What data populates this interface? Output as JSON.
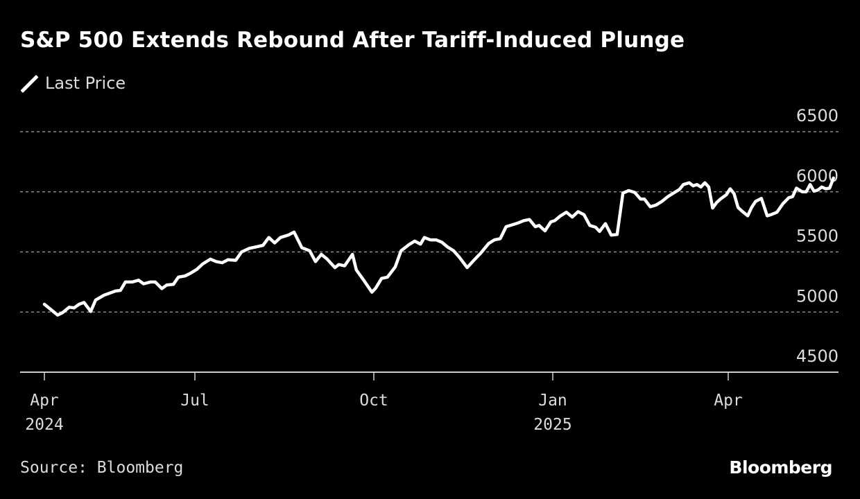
{
  "chart_data": {
    "type": "line",
    "title": "S&P 500 Extends Rebound After Tariff-Induced Plunge",
    "xlabel": "",
    "ylabel": "",
    "ylim": [
      4500,
      6500
    ],
    "y_ticks": [
      "6500",
      "6000",
      "5500",
      "5000",
      "4500"
    ],
    "y_tick_values": [
      6500,
      6000,
      5500,
      5000,
      4500
    ],
    "grid": true,
    "legend": {
      "placement": "top-left",
      "entries": [
        "Last Price"
      ]
    },
    "x_ticks": [
      {
        "date": "2024-04-01",
        "label": "Apr",
        "sublabel": "2024"
      },
      {
        "date": "2024-07-01",
        "label": "Jul",
        "sublabel": ""
      },
      {
        "date": "2024-10-01",
        "label": "Oct",
        "sublabel": ""
      },
      {
        "date": "2025-01-01",
        "label": "Jan",
        "sublabel": "2025"
      },
      {
        "date": "2025-04-01",
        "label": "Apr",
        "sublabel": ""
      }
    ],
    "xlim": [
      "2024-03-19",
      "2025-05-28"
    ],
    "series": [
      {
        "name": "Last Price",
        "color": "#ffffff",
        "points": [
          [
            "2024-04-01",
            5065
          ],
          [
            "2024-04-05",
            5020
          ],
          [
            "2024-04-09",
            4975
          ],
          [
            "2024-04-12",
            4995
          ],
          [
            "2024-04-16",
            5040
          ],
          [
            "2024-04-19",
            5035
          ],
          [
            "2024-04-22",
            5065
          ],
          [
            "2024-04-25",
            5080
          ],
          [
            "2024-04-29",
            5005
          ],
          [
            "2024-05-02",
            5100
          ],
          [
            "2024-05-07",
            5140
          ],
          [
            "2024-05-10",
            5155
          ],
          [
            "2024-05-14",
            5175
          ],
          [
            "2024-05-17",
            5180
          ],
          [
            "2024-05-20",
            5250
          ],
          [
            "2024-05-24",
            5250
          ],
          [
            "2024-05-28",
            5265
          ],
          [
            "2024-05-31",
            5235
          ],
          [
            "2024-06-04",
            5250
          ],
          [
            "2024-06-07",
            5250
          ],
          [
            "2024-06-11",
            5195
          ],
          [
            "2024-06-14",
            5225
          ],
          [
            "2024-06-18",
            5230
          ],
          [
            "2024-06-21",
            5290
          ],
          [
            "2024-06-25",
            5300
          ],
          [
            "2024-06-28",
            5320
          ],
          [
            "2024-07-02",
            5355
          ],
          [
            "2024-07-05",
            5400
          ],
          [
            "2024-07-09",
            5440
          ],
          [
            "2024-07-12",
            5420
          ],
          [
            "2024-07-15",
            5410
          ],
          [
            "2024-07-18",
            5435
          ],
          [
            "2024-07-22",
            5430
          ],
          [
            "2024-07-25",
            5500
          ],
          [
            "2024-07-29",
            5530
          ],
          [
            "2024-08-01",
            5540
          ],
          [
            "2024-08-05",
            5555
          ],
          [
            "2024-08-08",
            5620
          ],
          [
            "2024-08-11",
            5575
          ],
          [
            "2024-08-14",
            5620
          ],
          [
            "2024-08-18",
            5640
          ],
          [
            "2024-08-21",
            5665
          ],
          [
            "2024-08-25",
            5535
          ],
          [
            "2024-08-29",
            5510
          ],
          [
            "2024-09-01",
            5420
          ],
          [
            "2024-09-04",
            5480
          ],
          [
            "2024-09-07",
            5440
          ],
          [
            "2024-09-11",
            5370
          ],
          [
            "2024-09-13",
            5395
          ],
          [
            "2024-09-16",
            5385
          ],
          [
            "2024-09-20",
            5480
          ],
          [
            "2024-09-22",
            5350
          ],
          [
            "2024-09-26",
            5260
          ],
          [
            "2024-09-30",
            5165
          ],
          [
            "2024-10-02",
            5200
          ],
          [
            "2024-10-05",
            5280
          ],
          [
            "2024-10-08",
            5290
          ],
          [
            "2024-10-12",
            5375
          ],
          [
            "2024-10-15",
            5510
          ],
          [
            "2024-10-19",
            5560
          ],
          [
            "2024-10-22",
            5590
          ],
          [
            "2024-10-25",
            5565
          ],
          [
            "2024-10-27",
            5620
          ],
          [
            "2024-10-30",
            5600
          ],
          [
            "2024-11-02",
            5600
          ],
          [
            "2024-11-05",
            5580
          ],
          [
            "2024-11-08",
            5540
          ],
          [
            "2024-11-11",
            5510
          ],
          [
            "2024-11-14",
            5455
          ],
          [
            "2024-11-18",
            5370
          ],
          [
            "2024-11-22",
            5440
          ],
          [
            "2024-11-25",
            5490
          ],
          [
            "2024-11-29",
            5570
          ],
          [
            "2024-12-02",
            5600
          ],
          [
            "2024-12-05",
            5610
          ],
          [
            "2024-12-08",
            5710
          ],
          [
            "2024-12-11",
            5725
          ],
          [
            "2024-12-14",
            5740
          ],
          [
            "2024-12-17",
            5760
          ],
          [
            "2024-12-20",
            5770
          ],
          [
            "2024-12-23",
            5710
          ],
          [
            "2024-12-25",
            5720
          ],
          [
            "2024-12-28",
            5675
          ],
          [
            "2024-12-31",
            5750
          ],
          [
            "2025-01-02",
            5760
          ],
          [
            "2025-01-05",
            5800
          ],
          [
            "2025-01-08",
            5830
          ],
          [
            "2025-01-11",
            5790
          ],
          [
            "2025-01-14",
            5835
          ],
          [
            "2025-01-17",
            5810
          ],
          [
            "2025-01-20",
            5720
          ],
          [
            "2025-01-23",
            5705
          ],
          [
            "2025-01-25",
            5670
          ],
          [
            "2025-01-28",
            5735
          ],
          [
            "2025-01-31",
            5640
          ],
          [
            "2025-02-03",
            5645
          ],
          [
            "2025-02-06",
            5990
          ],
          [
            "2025-02-09",
            6010
          ],
          [
            "2025-02-12",
            5995
          ],
          [
            "2025-02-15",
            5940
          ],
          [
            "2025-02-17",
            5940
          ],
          [
            "2025-02-20",
            5875
          ],
          [
            "2025-02-23",
            5890
          ],
          [
            "2025-02-26",
            5920
          ],
          [
            "2025-03-01",
            5960
          ],
          [
            "2025-03-04",
            5990
          ],
          [
            "2025-03-07",
            6020
          ],
          [
            "2025-03-09",
            6060
          ],
          [
            "2025-03-12",
            6075
          ],
          [
            "2025-03-14",
            6050
          ],
          [
            "2025-03-16",
            6060
          ],
          [
            "2025-03-18",
            6040
          ],
          [
            "2025-03-20",
            6075
          ],
          [
            "2025-03-22",
            6040
          ],
          [
            "2025-03-24",
            5865
          ],
          [
            "2025-03-26",
            5910
          ],
          [
            "2025-03-28",
            5940
          ],
          [
            "2025-03-31",
            5975
          ],
          [
            "2025-04-02",
            6025
          ],
          [
            "2025-04-04",
            5985
          ],
          [
            "2025-04-06",
            5870
          ],
          [
            "2025-04-08",
            5840
          ],
          [
            "2025-04-11",
            5800
          ],
          [
            "2025-04-13",
            5870
          ],
          [
            "2025-04-15",
            5920
          ],
          [
            "2025-04-18",
            5945
          ],
          [
            "2025-04-21",
            5800
          ],
          [
            "2025-04-23",
            5810
          ],
          [
            "2025-04-26",
            5830
          ],
          [
            "2025-04-29",
            5900
          ],
          [
            "2025-05-02",
            5950
          ],
          [
            "2025-05-04",
            5960
          ],
          [
            "2025-05-06",
            6030
          ],
          [
            "2025-05-09",
            6000
          ],
          [
            "2025-05-11",
            6000
          ],
          [
            "2025-05-13",
            6060
          ],
          [
            "2025-05-15",
            6005
          ],
          [
            "2025-05-17",
            6015
          ],
          [
            "2025-05-19",
            6040
          ],
          [
            "2025-05-21",
            6025
          ],
          [
            "2025-05-23",
            6030
          ],
          [
            "2025-05-25",
            6115
          ]
        ]
      }
    ]
  },
  "header": {
    "title": "S&P 500 Extends Rebound After Tariff-Induced Plunge",
    "legend_label": "Last Price"
  },
  "footer": {
    "source": "Source: Bloomberg",
    "brand": "Bloomberg"
  }
}
